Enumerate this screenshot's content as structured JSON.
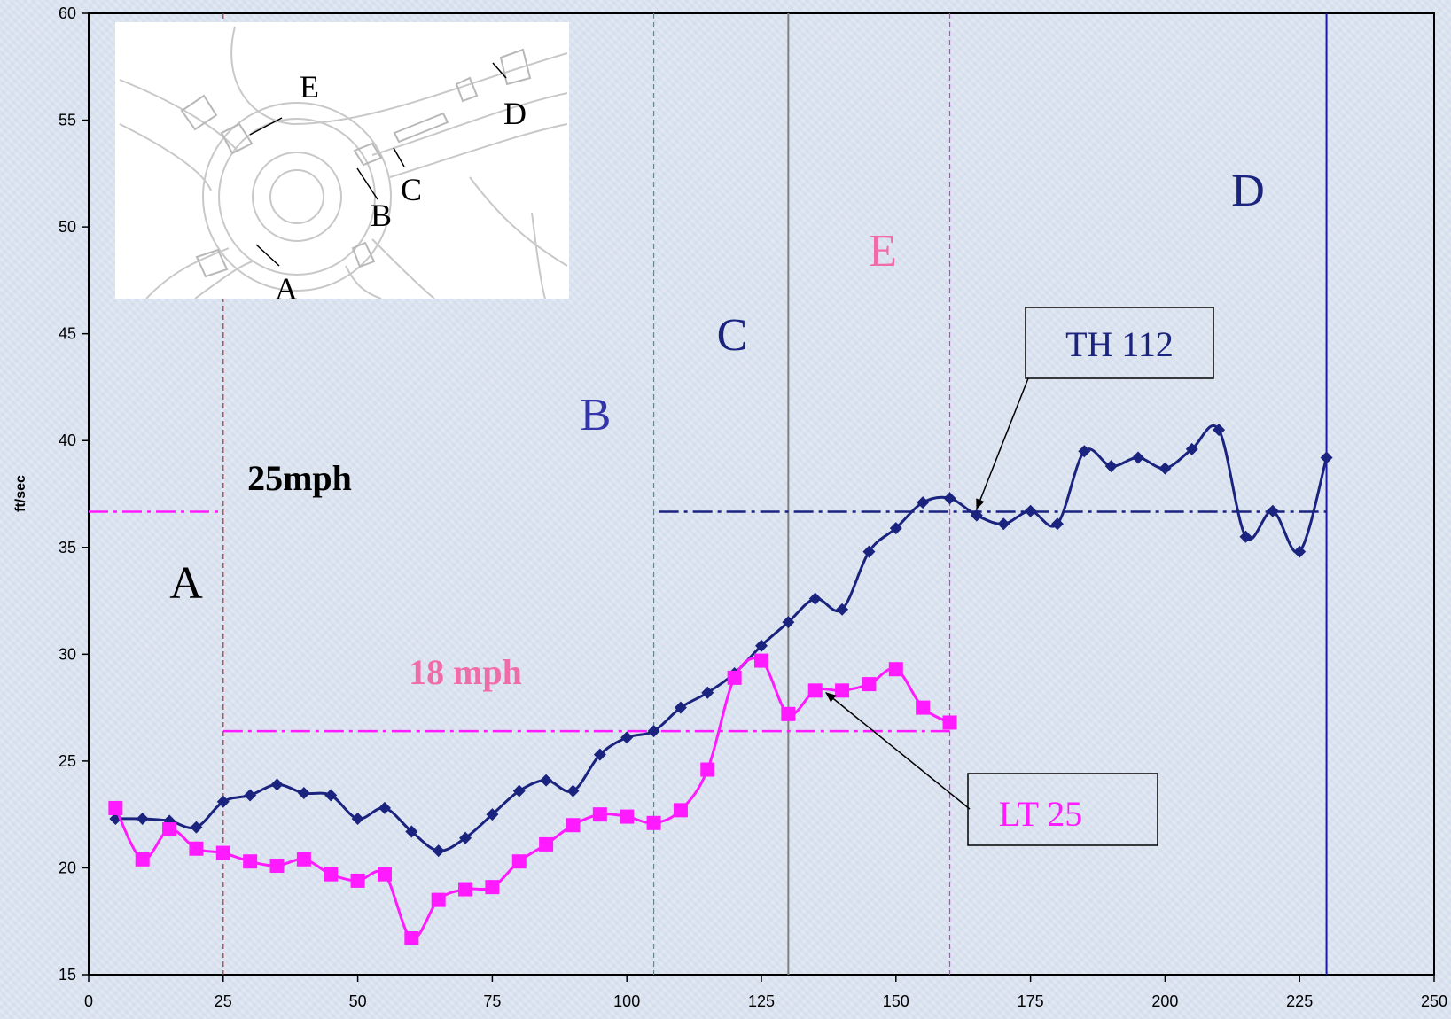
{
  "chart_data": {
    "type": "line",
    "title": "",
    "xlabel": "",
    "ylabel": "ft/sec",
    "xlim": [
      0,
      250
    ],
    "ylim": [
      15,
      60
    ],
    "x_ticks": [
      "0",
      "25",
      "50",
      "75",
      "100",
      "125",
      "150",
      "175",
      "200",
      "225",
      "250"
    ],
    "y_ticks": [
      "15",
      "20",
      "25",
      "30",
      "35",
      "40",
      "45",
      "50",
      "55",
      "60"
    ],
    "grid": false,
    "series": [
      {
        "name": "TH 112",
        "color": "#1a237e",
        "marker": "diamond",
        "x": [
          5,
          10,
          15,
          20,
          25,
          30,
          35,
          40,
          45,
          50,
          55,
          60,
          65,
          70,
          75,
          80,
          85,
          90,
          95,
          100,
          105,
          110,
          115,
          120,
          125,
          130,
          135,
          140,
          145,
          150,
          155,
          160,
          165,
          170,
          175,
          180,
          185,
          190,
          195,
          200,
          205,
          210,
          215,
          220,
          225,
          230
        ],
        "y": [
          22.3,
          22.3,
          22.2,
          21.9,
          23.1,
          23.4,
          23.9,
          23.5,
          23.4,
          22.3,
          22.8,
          21.7,
          20.8,
          21.4,
          22.5,
          23.6,
          24.1,
          23.6,
          25.3,
          26.1,
          26.4,
          27.5,
          28.2,
          29.1,
          30.4,
          31.5,
          32.6,
          32.1,
          34.8,
          35.9,
          37.1,
          37.3,
          36.5,
          36.1,
          36.7,
          36.1,
          39.5,
          38.8,
          39.2,
          38.7,
          39.6,
          40.5,
          35.5,
          36.7,
          34.8,
          39.2
        ]
      },
      {
        "name": "LT 25",
        "color": "#ff1aff",
        "marker": "square",
        "x": [
          5,
          10,
          15,
          20,
          25,
          30,
          35,
          40,
          45,
          50,
          55,
          60,
          65,
          70,
          75,
          80,
          85,
          90,
          95,
          100,
          105,
          110,
          115,
          120,
          125,
          130,
          135,
          140,
          145,
          150,
          155,
          160
        ],
        "y": [
          22.8,
          20.4,
          21.8,
          20.9,
          20.7,
          20.3,
          20.1,
          20.4,
          19.7,
          19.4,
          19.7,
          16.7,
          18.5,
          19.0,
          19.1,
          20.3,
          21.1,
          22.0,
          22.5,
          22.4,
          22.1,
          22.7,
          24.6,
          28.9,
          29.7,
          27.2,
          28.3,
          28.3,
          28.6,
          29.3,
          27.5,
          26.8
        ]
      }
    ],
    "reference_lines": {
      "horizontal": [
        {
          "label": "25mph",
          "y": 36.67,
          "segments": [
            [
              0,
              25
            ],
            [
              106,
              230
            ]
          ],
          "colors": [
            "#ff1aff",
            "#1a237e"
          ],
          "label_color": "#000000"
        },
        {
          "label": "18 mph",
          "y": 26.4,
          "segments": [
            [
              25,
              160
            ]
          ],
          "colors": [
            "#ff1aff"
          ],
          "label_color": "#f06ca6"
        }
      ],
      "vertical": [
        {
          "label": "A",
          "x": 25,
          "color": "#b03030",
          "dash": "dashed",
          "label_color": "#000000"
        },
        {
          "label": "B",
          "x": 105,
          "color": "#2aa0a0",
          "dash": "dashed",
          "label_color": "#3333aa"
        },
        {
          "label": "C",
          "x": 130,
          "color": "#808080",
          "dash": "solid",
          "label_color": "#1a237e"
        },
        {
          "label": "E",
          "x": 160,
          "color": "#ff1aff",
          "dash": "dashed",
          "label_color": "#f06ca6"
        },
        {
          "label": "D",
          "x": 230,
          "color": "#1a1aaa",
          "dash": "solid",
          "label_color": "#1a237e"
        }
      ]
    },
    "callouts": [
      {
        "text": "TH 112",
        "color": "#1a237e",
        "points_to": [
          165,
          36.8
        ]
      },
      {
        "text": "LT 25",
        "color": "#ff1aff",
        "points_to": [
          137,
          28.2
        ]
      }
    ],
    "inset": {
      "description_labels": [
        "E",
        "D",
        "C",
        "B",
        "A"
      ]
    }
  }
}
